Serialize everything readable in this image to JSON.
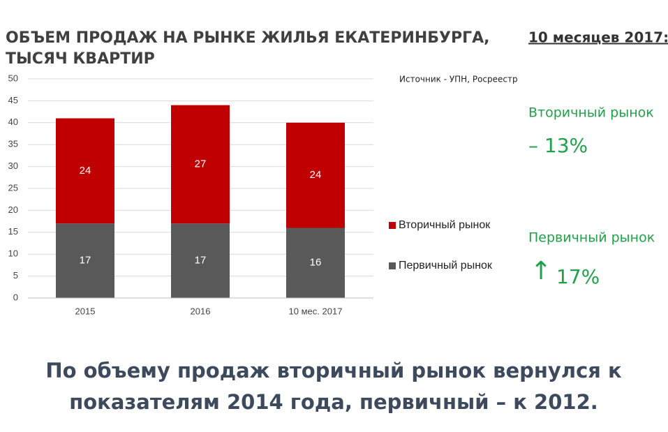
{
  "chart_data": {
    "type": "stacked_bar",
    "title": [
      "ОБЪЕМ ПРОДАЖ НА РЫНКЕ ЖИЛЬЯ ЕКАТЕРИНБУРГА,",
      "ТЫСЯЧ КВАРТИР"
    ],
    "source": "Источник - УПН, Росреестр",
    "categories": [
      "2015",
      "2016",
      "10 мес. 2017"
    ],
    "series": [
      {
        "name": "Первичный рынок",
        "color": "#595959",
        "values": [
          17,
          17,
          16
        ]
      },
      {
        "name": "Вторичный рынок",
        "color": "#c00000",
        "values": [
          24,
          27,
          24
        ]
      }
    ],
    "ylim": [
      0,
      50
    ],
    "yticks": [
      0,
      5,
      10,
      15,
      20,
      25,
      30,
      35,
      40,
      45,
      50
    ],
    "grid": true,
    "legend": "right"
  },
  "sidebar": {
    "heading": "10 месяцев 2017:",
    "items": [
      {
        "label": "Вторичный рынок",
        "change": "–  13%"
      },
      {
        "label": "Первичный рынок",
        "arrow": "↑",
        "change": "17%"
      }
    ]
  },
  "conclusion": [
    "По объему продаж вторичный рынок вернулся к",
    "показателям 2014 года, первичный – к 2012."
  ]
}
